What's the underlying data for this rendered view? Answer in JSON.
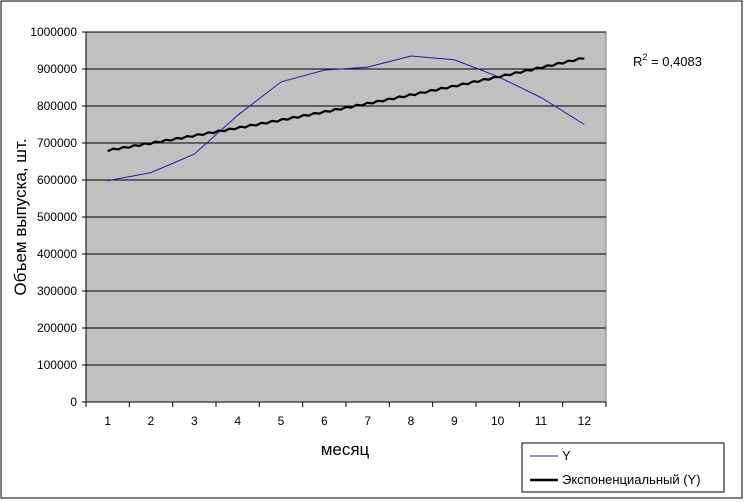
{
  "chart_data": {
    "type": "line",
    "x": [
      1,
      2,
      3,
      4,
      5,
      6,
      7,
      8,
      9,
      10,
      11,
      12
    ],
    "series": [
      {
        "name": "Y",
        "color": "#1f1f9a",
        "values": [
          598000,
          620000,
          670000,
          775000,
          865000,
          897000,
          905000,
          935000,
          925000,
          880000,
          823000,
          750000
        ]
      }
    ],
    "trendline": {
      "name": "Экспоненциальный (Y)",
      "color": "#000000",
      "model": "exponential",
      "values": [
        680000,
        698000,
        716000,
        735000,
        755000,
        776000,
        800000,
        826000,
        853000,
        880000,
        905000,
        930000
      ]
    },
    "xlabel": "месяц",
    "ylabel": "Объем выпуска, шт.",
    "ylim": [
      0,
      1000000
    ],
    "yticks": [
      "0",
      "100000",
      "200000",
      "300000",
      "400000",
      "500000",
      "600000",
      "700000",
      "800000",
      "900000",
      "1000000"
    ],
    "xticks": [
      "1",
      "2",
      "3",
      "4",
      "5",
      "6",
      "7",
      "8",
      "9",
      "10",
      "11",
      "12"
    ],
    "annotation": {
      "base": "R",
      "sup": "2",
      "text": " = 0,4083"
    },
    "plot_background": "#c0c0c0",
    "grid": true,
    "legend_position": "bottom-right"
  }
}
